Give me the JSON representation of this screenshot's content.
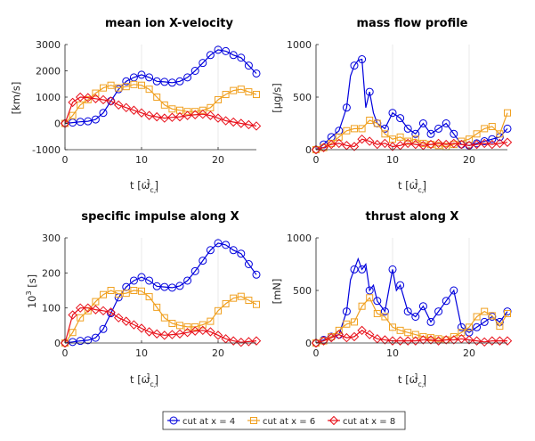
{
  "legend": [
    {
      "label": "cut at x = 4",
      "color": "#0000dd",
      "marker": "circle"
    },
    {
      "label": "cut at x = 6",
      "color": "#f0a020",
      "marker": "square"
    },
    {
      "label": "cut at x = 8",
      "color": "#e8101a",
      "marker": "diamond"
    }
  ],
  "chart_data": [
    {
      "type": "line",
      "title": "mean ion X-velocity",
      "xlabel": "t [ω_c,i^-1]",
      "ylabel": "[km/s]",
      "xlim": [
        0,
        25
      ],
      "ylim": [
        -1000,
        3000
      ],
      "xticks": [
        0,
        10,
        20
      ],
      "yticks": [
        -1000,
        0,
        1000,
        2000,
        3000
      ],
      "ytick_labels": [
        "-1000",
        "0",
        "1000",
        "2000",
        "3000"
      ],
      "series": [
        {
          "name": "cut at x = 4",
          "x": [
            0,
            1,
            2,
            3,
            4,
            5,
            6,
            7,
            8,
            9,
            10,
            11,
            12,
            13,
            14,
            15,
            16,
            17,
            18,
            19,
            20,
            21,
            22,
            23,
            24,
            25
          ],
          "y": [
            0,
            30,
            60,
            80,
            150,
            400,
            850,
            1300,
            1600,
            1750,
            1850,
            1750,
            1600,
            1580,
            1550,
            1600,
            1750,
            2000,
            2300,
            2600,
            2800,
            2750,
            2600,
            2500,
            2200,
            1900
          ]
        },
        {
          "name": "cut at x = 6",
          "x": [
            0,
            1,
            2,
            3,
            4,
            5,
            6,
            7,
            8,
            9,
            10,
            11,
            12,
            13,
            14,
            15,
            16,
            17,
            18,
            19,
            20,
            21,
            22,
            23,
            24,
            25
          ],
          "y": [
            0,
            300,
            700,
            900,
            1150,
            1350,
            1450,
            1350,
            1400,
            1480,
            1450,
            1300,
            1000,
            700,
            550,
            500,
            450,
            450,
            500,
            600,
            900,
            1100,
            1250,
            1300,
            1200,
            1100
          ]
        },
        {
          "name": "cut at x = 8",
          "x": [
            0,
            0.5,
            1,
            2,
            3,
            4,
            5,
            6,
            7,
            8,
            9,
            10,
            11,
            12,
            13,
            14,
            15,
            16,
            17,
            18,
            19,
            20,
            21,
            22,
            23,
            24,
            25
          ],
          "y": [
            0,
            400,
            800,
            1000,
            980,
            940,
            900,
            850,
            700,
            600,
            500,
            400,
            300,
            250,
            200,
            230,
            250,
            300,
            330,
            350,
            300,
            200,
            100,
            50,
            0,
            -50,
            -100
          ]
        }
      ]
    },
    {
      "type": "line",
      "title": "mass flow profile",
      "xlabel": "t [ω_c,i^-1]",
      "ylabel": "[μg/s]",
      "xlim": [
        0,
        25
      ],
      "ylim": [
        0,
        1000
      ],
      "xticks": [
        0,
        10,
        20
      ],
      "yticks": [
        0,
        500,
        1000
      ],
      "ytick_labels": [
        "0",
        "500",
        "1000"
      ],
      "series": [
        {
          "name": "cut at x = 4",
          "x": [
            0,
            1,
            2,
            3,
            4,
            4.5,
            5,
            5.5,
            6,
            6.5,
            7,
            7.5,
            8,
            9,
            10,
            11,
            12,
            13,
            14,
            15,
            16,
            17,
            18,
            19,
            20,
            21,
            22,
            23,
            24,
            25
          ],
          "y": [
            0,
            50,
            120,
            180,
            400,
            700,
            800,
            850,
            860,
            400,
            550,
            350,
            250,
            200,
            350,
            300,
            200,
            150,
            250,
            150,
            200,
            250,
            150,
            50,
            40,
            60,
            80,
            100,
            120,
            200
          ]
        },
        {
          "name": "cut at x = 6",
          "x": [
            0,
            1,
            2,
            3,
            4,
            5,
            6,
            7,
            8,
            9,
            10,
            11,
            12,
            13,
            14,
            15,
            16,
            17,
            18,
            19,
            20,
            21,
            22,
            23,
            24,
            25
          ],
          "y": [
            0,
            20,
            60,
            120,
            180,
            200,
            200,
            280,
            250,
            150,
            100,
            120,
            80,
            100,
            60,
            50,
            40,
            30,
            50,
            80,
            100,
            150,
            200,
            220,
            150,
            350
          ]
        },
        {
          "name": "cut at x = 8",
          "x": [
            0,
            1,
            2,
            3,
            4,
            5,
            6,
            7,
            8,
            9,
            10,
            11,
            12,
            13,
            14,
            15,
            16,
            17,
            18,
            19,
            20,
            21,
            22,
            23,
            24,
            25
          ],
          "y": [
            0,
            20,
            50,
            60,
            40,
            30,
            100,
            80,
            50,
            60,
            30,
            40,
            60,
            50,
            40,
            50,
            60,
            50,
            60,
            50,
            40,
            50,
            60,
            50,
            60,
            70
          ]
        }
      ]
    },
    {
      "type": "line",
      "title": "specific impulse along X",
      "xlabel": "t [ω_c,i^-1]",
      "ylabel": "10^3 [s]",
      "xlim": [
        0,
        25
      ],
      "ylim": [
        0,
        300
      ],
      "xticks": [
        0,
        10,
        20
      ],
      "yticks": [
        0,
        100,
        200,
        300
      ],
      "ytick_labels": [
        "0",
        "100",
        "200",
        "300"
      ],
      "series": [
        {
          "name": "cut at x = 4",
          "x": [
            0,
            1,
            2,
            3,
            4,
            5,
            6,
            7,
            8,
            9,
            10,
            11,
            12,
            13,
            14,
            15,
            16,
            17,
            18,
            19,
            20,
            21,
            22,
            23,
            24,
            25
          ],
          "y": [
            0,
            3,
            6,
            8,
            15,
            40,
            85,
            130,
            160,
            178,
            188,
            178,
            162,
            160,
            158,
            163,
            178,
            205,
            235,
            265,
            285,
            280,
            265,
            255,
            225,
            195
          ]
        },
        {
          "name": "cut at x = 6",
          "x": [
            0,
            1,
            2,
            3,
            4,
            5,
            6,
            7,
            8,
            9,
            10,
            11,
            12,
            13,
            14,
            15,
            16,
            17,
            18,
            19,
            20,
            21,
            22,
            23,
            24,
            25
          ],
          "y": [
            0,
            30,
            72,
            92,
            118,
            138,
            150,
            140,
            142,
            150,
            148,
            132,
            102,
            72,
            56,
            50,
            46,
            46,
            52,
            62,
            92,
            112,
            128,
            133,
            122,
            110
          ]
        },
        {
          "name": "cut at x = 8",
          "x": [
            0,
            0.5,
            1,
            2,
            3,
            4,
            5,
            6,
            7,
            8,
            9,
            10,
            11,
            12,
            13,
            14,
            15,
            16,
            17,
            18,
            19,
            20,
            21,
            22,
            23,
            24,
            25
          ],
          "y": [
            0,
            40,
            80,
            100,
            100,
            95,
            92,
            88,
            72,
            62,
            52,
            42,
            32,
            26,
            22,
            24,
            26,
            30,
            34,
            36,
            32,
            22,
            12,
            6,
            2,
            4,
            6
          ]
        }
      ]
    },
    {
      "type": "line",
      "title": "thrust along X",
      "xlabel": "t [ω_c,i^-1]",
      "ylabel": "[mN]",
      "xlim": [
        0,
        25
      ],
      "ylim": [
        0,
        1000
      ],
      "xticks": [
        0,
        10,
        20
      ],
      "yticks": [
        0,
        500,
        1000
      ],
      "ytick_labels": [
        "0",
        "500",
        "1000"
      ],
      "series": [
        {
          "name": "cut at x = 4",
          "x": [
            0,
            1,
            2,
            3,
            4,
            4.5,
            5,
            5.5,
            6,
            6.5,
            7,
            7.5,
            8,
            9,
            10,
            10.5,
            11,
            12,
            13,
            14,
            15,
            16,
            17,
            18,
            19,
            20,
            21,
            22,
            23,
            24,
            25
          ],
          "y": [
            0,
            30,
            60,
            80,
            300,
            600,
            700,
            800,
            700,
            750,
            500,
            550,
            400,
            300,
            700,
            500,
            550,
            300,
            250,
            350,
            200,
            300,
            400,
            500,
            150,
            100,
            150,
            200,
            250,
            200,
            300
          ]
        },
        {
          "name": "cut at x = 6",
          "x": [
            0,
            1,
            2,
            3,
            4,
            5,
            6,
            7,
            8,
            9,
            10,
            11,
            12,
            13,
            14,
            15,
            16,
            17,
            18,
            19,
            20,
            21,
            22,
            23,
            24,
            25
          ],
          "y": [
            0,
            20,
            60,
            120,
            180,
            200,
            350,
            430,
            280,
            250,
            150,
            120,
            100,
            80,
            60,
            50,
            40,
            30,
            60,
            100,
            150,
            250,
            300,
            260,
            160,
            280
          ]
        },
        {
          "name": "cut at x = 8",
          "x": [
            0,
            1,
            2,
            3,
            4,
            5,
            6,
            7,
            8,
            9,
            10,
            11,
            12,
            13,
            14,
            15,
            16,
            17,
            18,
            19,
            20,
            21,
            22,
            23,
            24,
            25
          ],
          "y": [
            0,
            20,
            50,
            80,
            50,
            60,
            120,
            80,
            40,
            30,
            20,
            20,
            20,
            20,
            30,
            30,
            20,
            30,
            30,
            40,
            30,
            20,
            10,
            20,
            20,
            20
          ]
        }
      ]
    }
  ]
}
